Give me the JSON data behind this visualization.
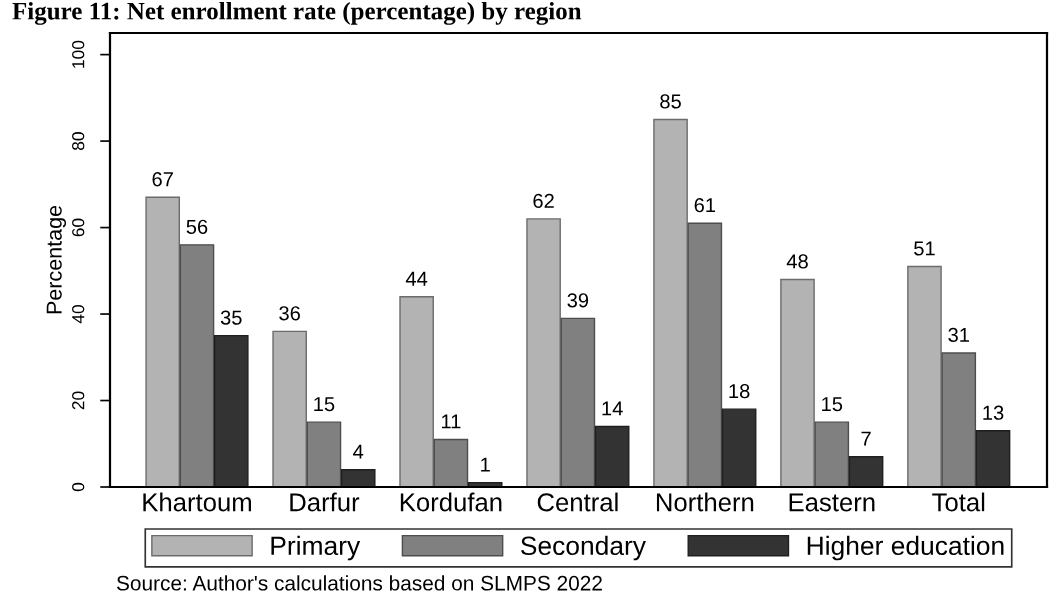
{
  "chart_data": {
    "type": "bar",
    "title": "Figure 11: Net enrollment rate (percentage) by region",
    "ylabel": "Percentage",
    "categories": [
      "Khartoum",
      "Darfur",
      "Kordufan",
      "Central",
      "Northern",
      "Eastern",
      "Total"
    ],
    "series": [
      {
        "name": "Primary",
        "color": "#b3b3b3",
        "values": [
          67,
          36,
          44,
          62,
          85,
          48,
          51
        ]
      },
      {
        "name": "Secondary",
        "color": "#808080",
        "values": [
          56,
          15,
          11,
          39,
          61,
          15,
          31
        ]
      },
      {
        "name": "Higher education",
        "color": "#333333",
        "values": [
          35,
          4,
          1,
          14,
          18,
          7,
          13
        ]
      }
    ],
    "ylim": [
      0,
      105
    ],
    "yticks": [
      0,
      20,
      40,
      60,
      80,
      100
    ],
    "data_labels": true,
    "grid": false,
    "legend": "bottom",
    "annotations": [
      "Source: Author's calculations based on SLMPS 2022"
    ]
  }
}
